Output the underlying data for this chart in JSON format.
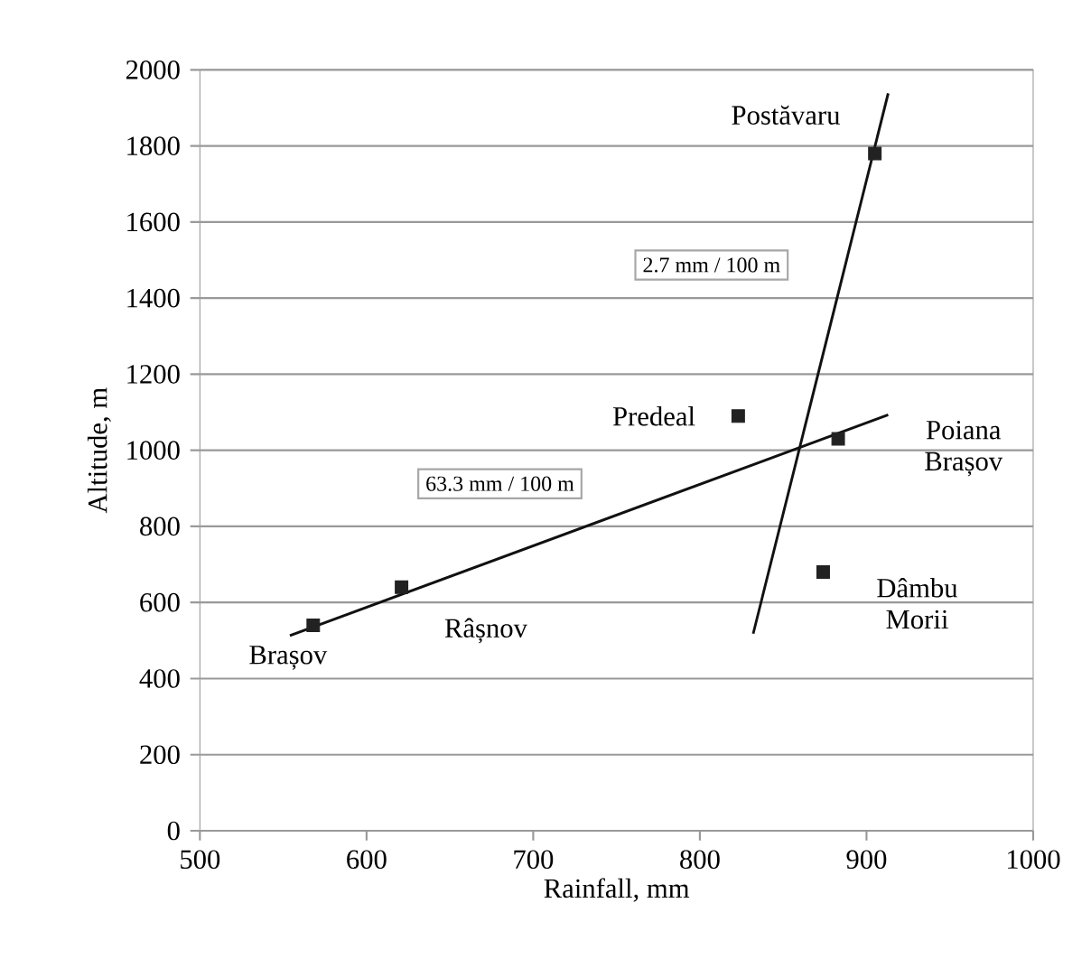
{
  "chart_data": {
    "type": "scatter",
    "xlabel": "Rainfall, mm",
    "ylabel": "Altitude, m",
    "xlim": [
      500,
      1000
    ],
    "ylim": [
      0,
      2000
    ],
    "xticks": [
      500,
      600,
      700,
      800,
      900,
      1000
    ],
    "yticks": [
      0,
      200,
      400,
      600,
      800,
      1000,
      1200,
      1400,
      1600,
      1800,
      2000
    ],
    "grid": "y",
    "marker": "square",
    "series": [
      {
        "name": "Brașov",
        "color": "#222222",
        "x": [
          568
        ],
        "values": [
          540
        ]
      },
      {
        "name": "Râșnov",
        "color": "#222222",
        "x": [
          621
        ],
        "values": [
          640
        ]
      },
      {
        "name": "Predeal",
        "color": "#222222",
        "x": [
          823
        ],
        "values": [
          1090
        ]
      },
      {
        "name": "Poiana Brașov",
        "color": "#222222",
        "x": [
          883
        ],
        "values": [
          1030
        ]
      },
      {
        "name": "Dâmbu Morii",
        "color": "#222222",
        "x": [
          874
        ],
        "values": [
          680
        ]
      },
      {
        "name": "Postăvaru",
        "color": "#222222",
        "x": [
          905
        ],
        "values": [
          1780
        ]
      },
      {
        "type": "line",
        "marker": "none",
        "color": "#111111",
        "x": [
          554,
          913
        ],
        "values": [
          513,
          1093
        ]
      },
      {
        "type": "line",
        "marker": "none",
        "color": "#111111",
        "x": [
          832,
          913
        ],
        "values": [
          518,
          1938
        ]
      }
    ],
    "annotations": [
      "2.7 mm / 100 m",
      "63.3 mm / 100 m"
    ]
  }
}
